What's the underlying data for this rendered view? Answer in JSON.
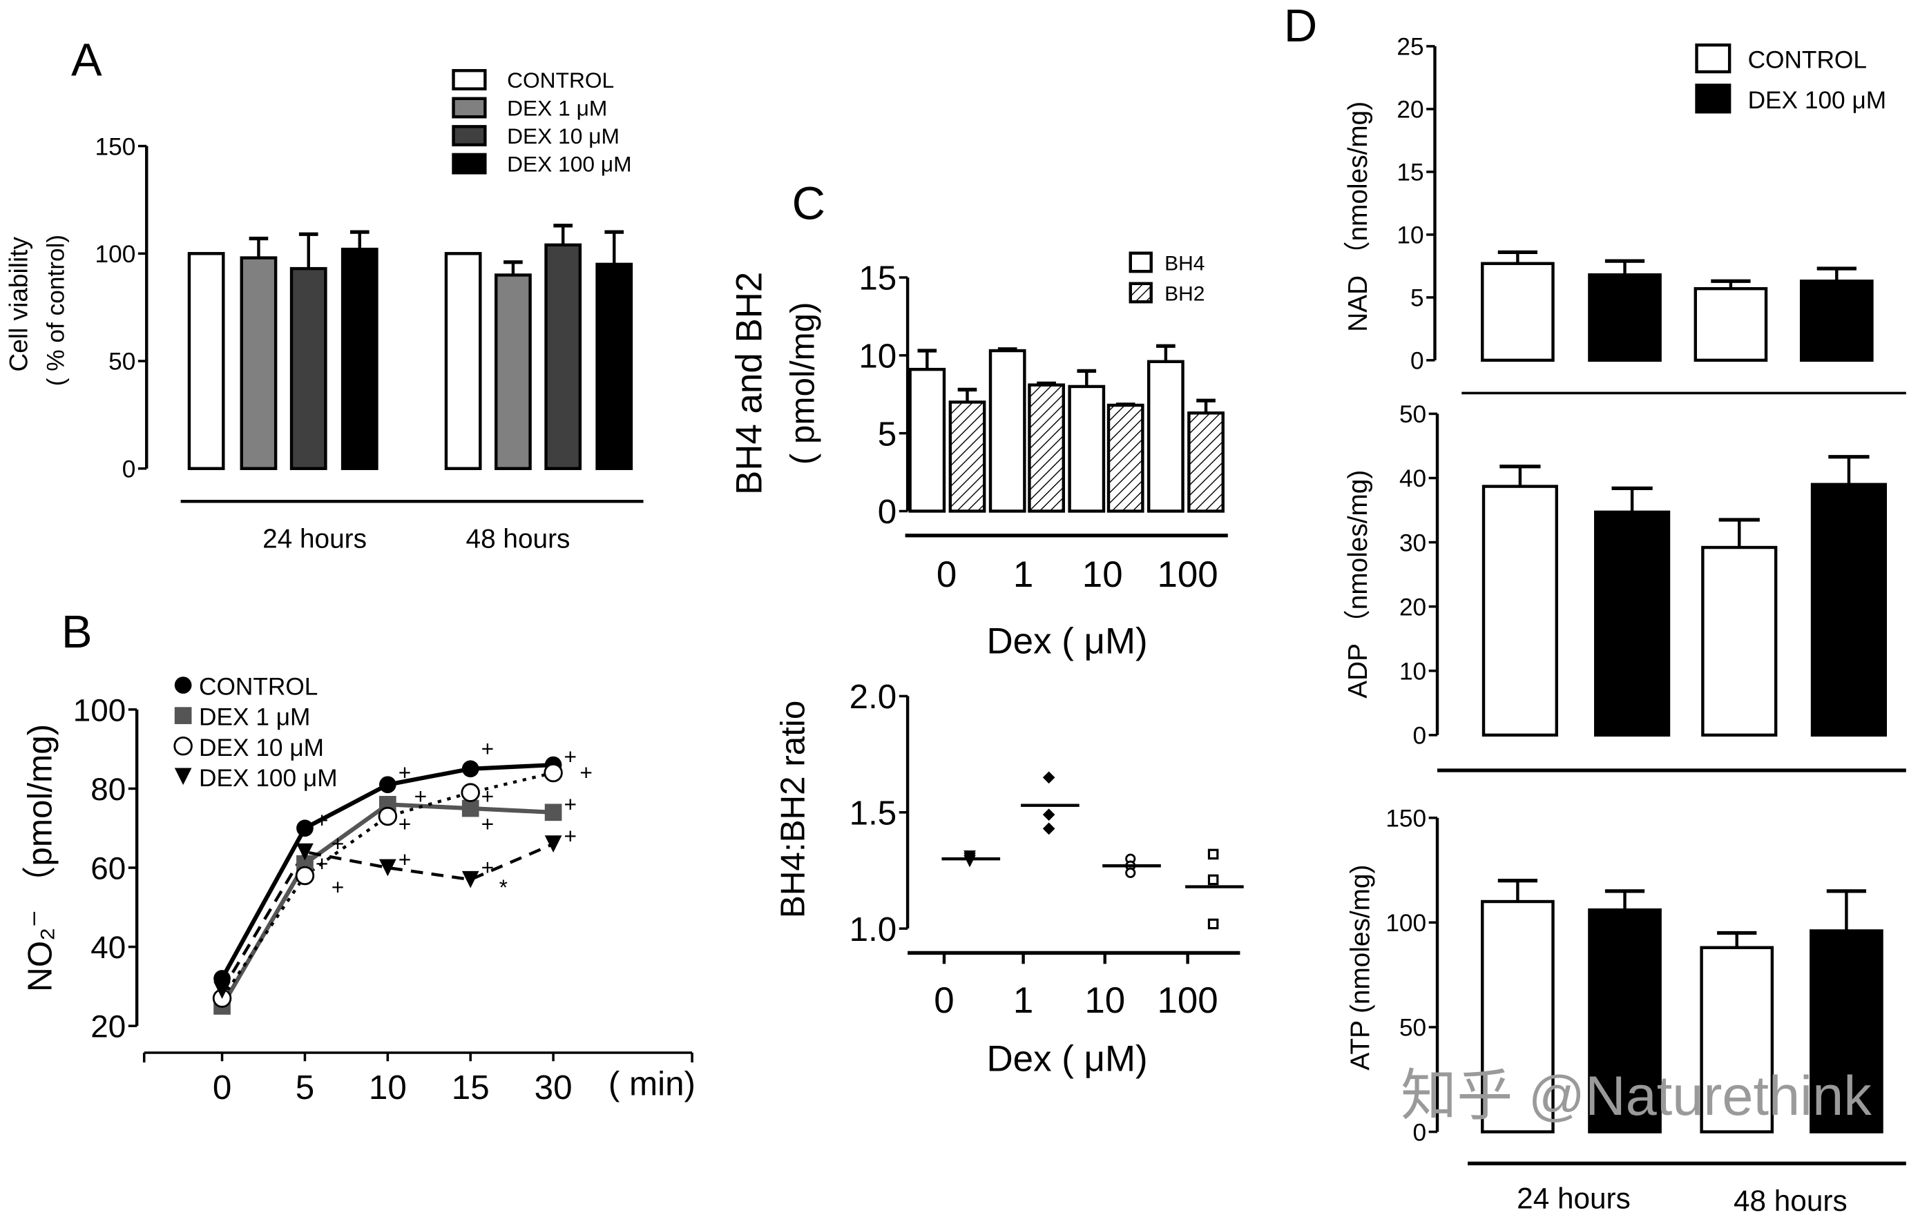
{
  "panel_labels": [
    "A",
    "B",
    "C",
    "D"
  ],
  "watermark": "知乎 @Naturethink",
  "colors": {
    "control": "#ffffff",
    "dex1": "#808080",
    "dex10": "#404040",
    "dex100": "#000000",
    "axis": "#000000",
    "watermark": "#9a9a9a"
  },
  "chart_data": [
    {
      "panel": "A",
      "type": "bar",
      "categories": [
        "24 hours",
        "48 hours"
      ],
      "ylabel": [
        "Cell viability",
        "( % of control)"
      ],
      "ylim": [
        0,
        150
      ],
      "yticks": [
        "0",
        "50",
        "100",
        "150"
      ],
      "legend_position": "top-right",
      "grid": false,
      "series": [
        {
          "name": "CONTROL",
          "color": "#ffffff",
          "values": [
            100,
            100
          ],
          "error_top": [
            100,
            100
          ]
        },
        {
          "name": "DEX 1 μM",
          "color": "#808080",
          "values": [
            98,
            90
          ],
          "error_top": [
            107,
            96
          ]
        },
        {
          "name": "DEX 10 μM",
          "color": "#404040",
          "values": [
            93,
            104
          ],
          "error_top": [
            109,
            113
          ]
        },
        {
          "name": "DEX 100 μM",
          "color": "#000000",
          "values": [
            102,
            95
          ],
          "error_top": [
            110,
            110
          ]
        }
      ]
    },
    {
      "panel": "B",
      "type": "line",
      "x": [
        "0",
        "5",
        "10",
        "15",
        "30"
      ],
      "xlabel": "( min)",
      "ylabel": "NO₂⁻ （pmol/mg)",
      "ylim": [
        20,
        100
      ],
      "yticks": [
        "20",
        "40",
        "60",
        "80",
        "100"
      ],
      "legend_position": "top-left",
      "grid": false,
      "series": [
        {
          "name": "CONTROL",
          "marker": "filled-circle",
          "line": "solid",
          "color": "#000000",
          "values": [
            32,
            70,
            81,
            85,
            86
          ]
        },
        {
          "name": "DEX 1 μM",
          "marker": "filled-square",
          "line": "solid",
          "color": "#555555",
          "values": [
            25,
            61,
            76,
            75,
            74
          ]
        },
        {
          "name": "DEX 10 μM",
          "marker": "open-circle",
          "line": "dotted",
          "color": "#000000",
          "values": [
            27,
            58,
            73,
            79,
            84
          ]
        },
        {
          "name": "DEX 100 μM",
          "marker": "filled-triangle-down",
          "line": "dashed",
          "color": "#000000",
          "values": [
            29,
            64,
            60,
            57,
            66
          ]
        }
      ],
      "annotations": [
        {
          "x": "5",
          "y": 72,
          "text": "+"
        },
        {
          "x": "5",
          "y": 66,
          "text": "+"
        },
        {
          "x": "5",
          "y": 61,
          "text": "+"
        },
        {
          "x": "5",
          "y": 55,
          "text": "+"
        },
        {
          "x": "10",
          "y": 84,
          "text": "+"
        },
        {
          "x": "10",
          "y": 78,
          "text": "+"
        },
        {
          "x": "10",
          "y": 71,
          "text": "+"
        },
        {
          "x": "10",
          "y": 62,
          "text": "+"
        },
        {
          "x": "15",
          "y": 90,
          "text": "+"
        },
        {
          "x": "15",
          "y": 78,
          "text": "+"
        },
        {
          "x": "15",
          "y": 71,
          "text": "+"
        },
        {
          "x": "15",
          "y": 60,
          "text": "+"
        },
        {
          "x": "15",
          "y": 55,
          "text": "*"
        },
        {
          "x": "30",
          "y": 88,
          "text": "+"
        },
        {
          "x": "30",
          "y": 84,
          "text": "+"
        },
        {
          "x": "30",
          "y": 76,
          "text": "+"
        },
        {
          "x": "30",
          "y": 68,
          "text": "+"
        }
      ]
    },
    {
      "panel": "C",
      "type": "bar",
      "categories": [
        "0",
        "1",
        "10",
        "100"
      ],
      "xlabel": "Dex ( μM)",
      "ylabel": [
        "BH4 and BH2",
        "( pmol/mg)"
      ],
      "ylim": [
        0,
        15
      ],
      "yticks": [
        "0",
        "5",
        "10",
        "15"
      ],
      "legend_position": "top-right",
      "grid": false,
      "series": [
        {
          "name": "BH4",
          "color": "#ffffff",
          "pattern": "none",
          "values": [
            9.1,
            10.3,
            8.0,
            9.6
          ],
          "error_top": [
            10.3,
            10.4,
            9.0,
            10.6
          ]
        },
        {
          "name": "BH2",
          "color": "#ffffff",
          "pattern": "diagonal-hatch",
          "values": [
            7.0,
            8.1,
            6.8,
            6.3
          ],
          "error_top": [
            7.8,
            8.2,
            6.85,
            7.1
          ]
        }
      ]
    },
    {
      "panel": "C",
      "type": "scatter",
      "categories": [
        "0",
        "1",
        "10",
        "100"
      ],
      "xlabel": "Dex ( μM)",
      "ylabel": "BH4:BH2 ratio",
      "ylim": [
        1.0,
        2.0
      ],
      "yticks": [
        "1.0",
        "1.5",
        "2.0"
      ],
      "grid": false,
      "groups": [
        {
          "marker": "filled-triangle-down",
          "points": [
            1.31,
            1.3,
            1.29
          ],
          "mean": 1.3
        },
        {
          "marker": "filled-diamond",
          "points": [
            1.65,
            1.49,
            1.43
          ],
          "mean": 1.53
        },
        {
          "marker": "open-circle",
          "points": [
            1.3,
            1.27,
            1.24
          ],
          "mean": 1.27
        },
        {
          "marker": "open-square",
          "points": [
            1.32,
            1.21,
            1.02
          ],
          "mean": 1.18
        }
      ]
    },
    {
      "panel": "D",
      "type": "bar",
      "ylabel": "NAD （nmoles/mg)",
      "ylim": [
        0,
        25
      ],
      "yticks": [
        "0",
        "5",
        "10",
        "15",
        "20",
        "25"
      ],
      "legend_position": "top-right",
      "grid": false,
      "series": [
        {
          "name": "CONTROL",
          "color": "#ffffff",
          "values": [
            7.7,
            5.7
          ],
          "error_top": [
            8.6,
            6.3
          ]
        },
        {
          "name": "DEX 100 μM",
          "color": "#000000",
          "values": [
            6.8,
            6.3
          ],
          "error_top": [
            7.9,
            7.3
          ]
        }
      ]
    },
    {
      "panel": "D",
      "type": "bar",
      "ylabel": "ADP （nmoles/mg)",
      "ylim": [
        0,
        50
      ],
      "yticks": [
        "0",
        "10",
        "20",
        "30",
        "40",
        "50"
      ],
      "grid": false,
      "series": [
        {
          "color": "#ffffff",
          "values": [
            38.7,
            29.2
          ],
          "error_top": [
            41.8,
            33.5
          ]
        },
        {
          "color": "#000000",
          "values": [
            34.7,
            39.0
          ],
          "error_top": [
            38.4,
            43.3
          ]
        }
      ]
    },
    {
      "panel": "D",
      "type": "bar",
      "categories": [
        "24 hours",
        "48 hours"
      ],
      "ylabel": "ATP (nmoles/mg)",
      "ylim": [
        0,
        150
      ],
      "yticks": [
        "0",
        "50",
        "100",
        "150"
      ],
      "grid": false,
      "series": [
        {
          "color": "#ffffff",
          "values": [
            110,
            88
          ],
          "error_top": [
            120,
            95
          ]
        },
        {
          "color": "#000000",
          "values": [
            106,
            96
          ],
          "error_top": [
            115,
            115
          ]
        }
      ]
    }
  ]
}
